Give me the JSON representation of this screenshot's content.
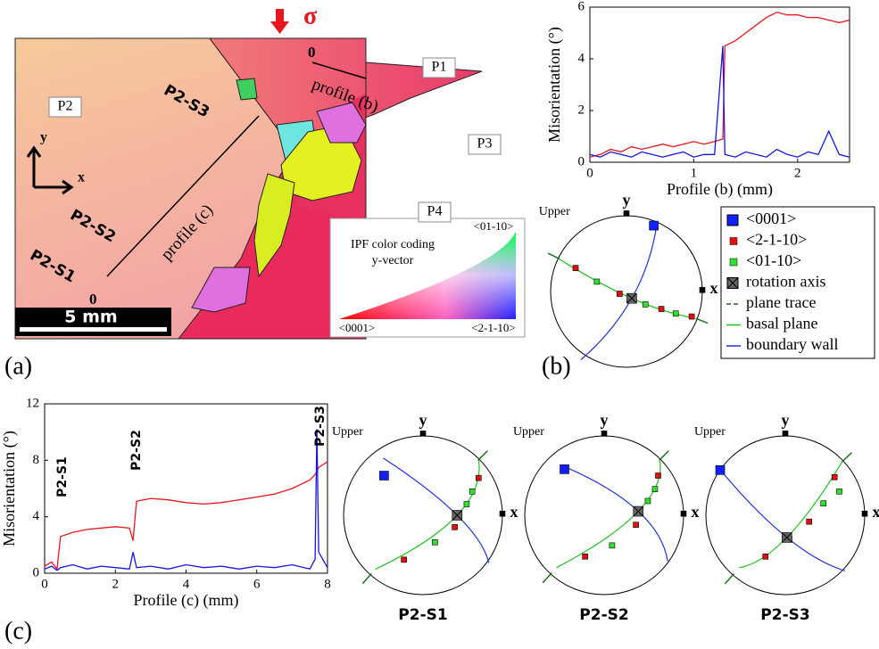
{
  "panel_a": {
    "label": "(a)",
    "sigma": "σ",
    "grains": [
      "P1",
      "P2",
      "P3",
      "P4"
    ],
    "segments": [
      "P2-S3",
      "P2-S2",
      "P2-S1"
    ],
    "profile_b": "profile (b)",
    "profile_c": "profile (c)",
    "origin_b": "0",
    "origin_c": "0",
    "axis_x": "x",
    "axis_y": "y",
    "scale_bar": "5 mm",
    "ipf": {
      "title": "IPF color coding",
      "subtitle": "y-vector",
      "corners": [
        "<0001>",
        "<2-1-10>",
        "<01-10>"
      ]
    }
  },
  "panel_b_label": "(b)",
  "panel_c_label": "(c)",
  "chart_data": [
    {
      "type": "line",
      "xlabel": "Profile (b) (mm)",
      "ylabel": "Misorientation (°)",
      "x": [
        0,
        0.1,
        0.2,
        0.3,
        0.4,
        0.5,
        0.6,
        0.7,
        0.8,
        0.9,
        1.0,
        1.1,
        1.2,
        1.28,
        1.3,
        1.4,
        1.5,
        1.6,
        1.7,
        1.8,
        1.9,
        2.0,
        2.1,
        2.2,
        2.3,
        2.4,
        2.5
      ],
      "xlim": [
        0,
        2.5
      ],
      "xticks": [
        0,
        1,
        2
      ],
      "ylim": [
        0,
        6
      ],
      "yticks": [
        0,
        2,
        4,
        6
      ],
      "series": [
        {
          "color": "#e8161e",
          "values": [
            0.2,
            0.3,
            0.5,
            0.4,
            0.6,
            0.5,
            0.6,
            0.7,
            0.6,
            0.7,
            0.8,
            0.7,
            0.8,
            0.9,
            4.5,
            4.7,
            5.0,
            5.3,
            5.6,
            5.8,
            5.7,
            5.7,
            5.6,
            5.6,
            5.5,
            5.4,
            5.5
          ]
        },
        {
          "color": "#1515e0",
          "values": [
            0.3,
            0.2,
            0.4,
            0.3,
            0.2,
            0.4,
            0.3,
            0.2,
            0.3,
            0.4,
            0.2,
            0.3,
            0.3,
            4.5,
            0.3,
            0.2,
            0.4,
            0.3,
            0.2,
            0.5,
            0.3,
            0.2,
            0.4,
            0.3,
            1.2,
            0.3,
            0.2
          ]
        }
      ]
    },
    {
      "type": "line",
      "xlabel": "Profile (c) (mm)",
      "ylabel": "Misorientation (°)",
      "x": [
        0,
        0.2,
        0.35,
        0.45,
        0.8,
        1.2,
        1.6,
        2.0,
        2.4,
        2.5,
        2.6,
        3.0,
        3.5,
        4.0,
        4.5,
        5.0,
        5.5,
        6.0,
        6.5,
        7.0,
        7.5,
        7.65,
        7.7,
        7.75,
        8.0
      ],
      "xlim": [
        0,
        8
      ],
      "xticks": [
        0,
        2,
        4,
        6,
        8
      ],
      "ylim": [
        0,
        12
      ],
      "yticks": [
        0,
        4,
        8,
        12
      ],
      "annotations": [
        "P2-S1",
        "P2-S2",
        "P2-S3"
      ],
      "series": [
        {
          "color": "#e8161e",
          "values": [
            0.5,
            0.8,
            0.3,
            2.6,
            2.9,
            3.1,
            3.2,
            3.3,
            3.2,
            2.3,
            5.1,
            5.3,
            5.2,
            5.0,
            4.9,
            5.0,
            5.2,
            5.4,
            5.6,
            6.0,
            6.6,
            7.0,
            7.2,
            7.5,
            7.9
          ]
        },
        {
          "color": "#1515e0",
          "values": [
            0.3,
            0.5,
            0.2,
            0.4,
            0.6,
            0.3,
            0.5,
            0.4,
            0.3,
            1.5,
            0.4,
            0.5,
            0.3,
            0.6,
            0.4,
            0.5,
            0.3,
            0.5,
            0.4,
            0.6,
            0.3,
            1.0,
            10.2,
            1.5,
            0.4
          ]
        }
      ]
    }
  ],
  "pole_figures": [
    {
      "upper": "Upper",
      "y": "y",
      "x": "x"
    },
    {
      "upper": "Upper",
      "y": "y",
      "x": "x",
      "title": "P2-S1"
    },
    {
      "upper": "Upper",
      "y": "y",
      "x": "x",
      "title": "P2-S2"
    },
    {
      "upper": "Upper",
      "y": "y",
      "x": "x",
      "title": "P2-S3"
    }
  ],
  "legend": [
    "<0001>",
    "<2-1-10>",
    "<01-10>",
    "rotation axis",
    "plane trace",
    "basal plane",
    "boundary wall"
  ]
}
